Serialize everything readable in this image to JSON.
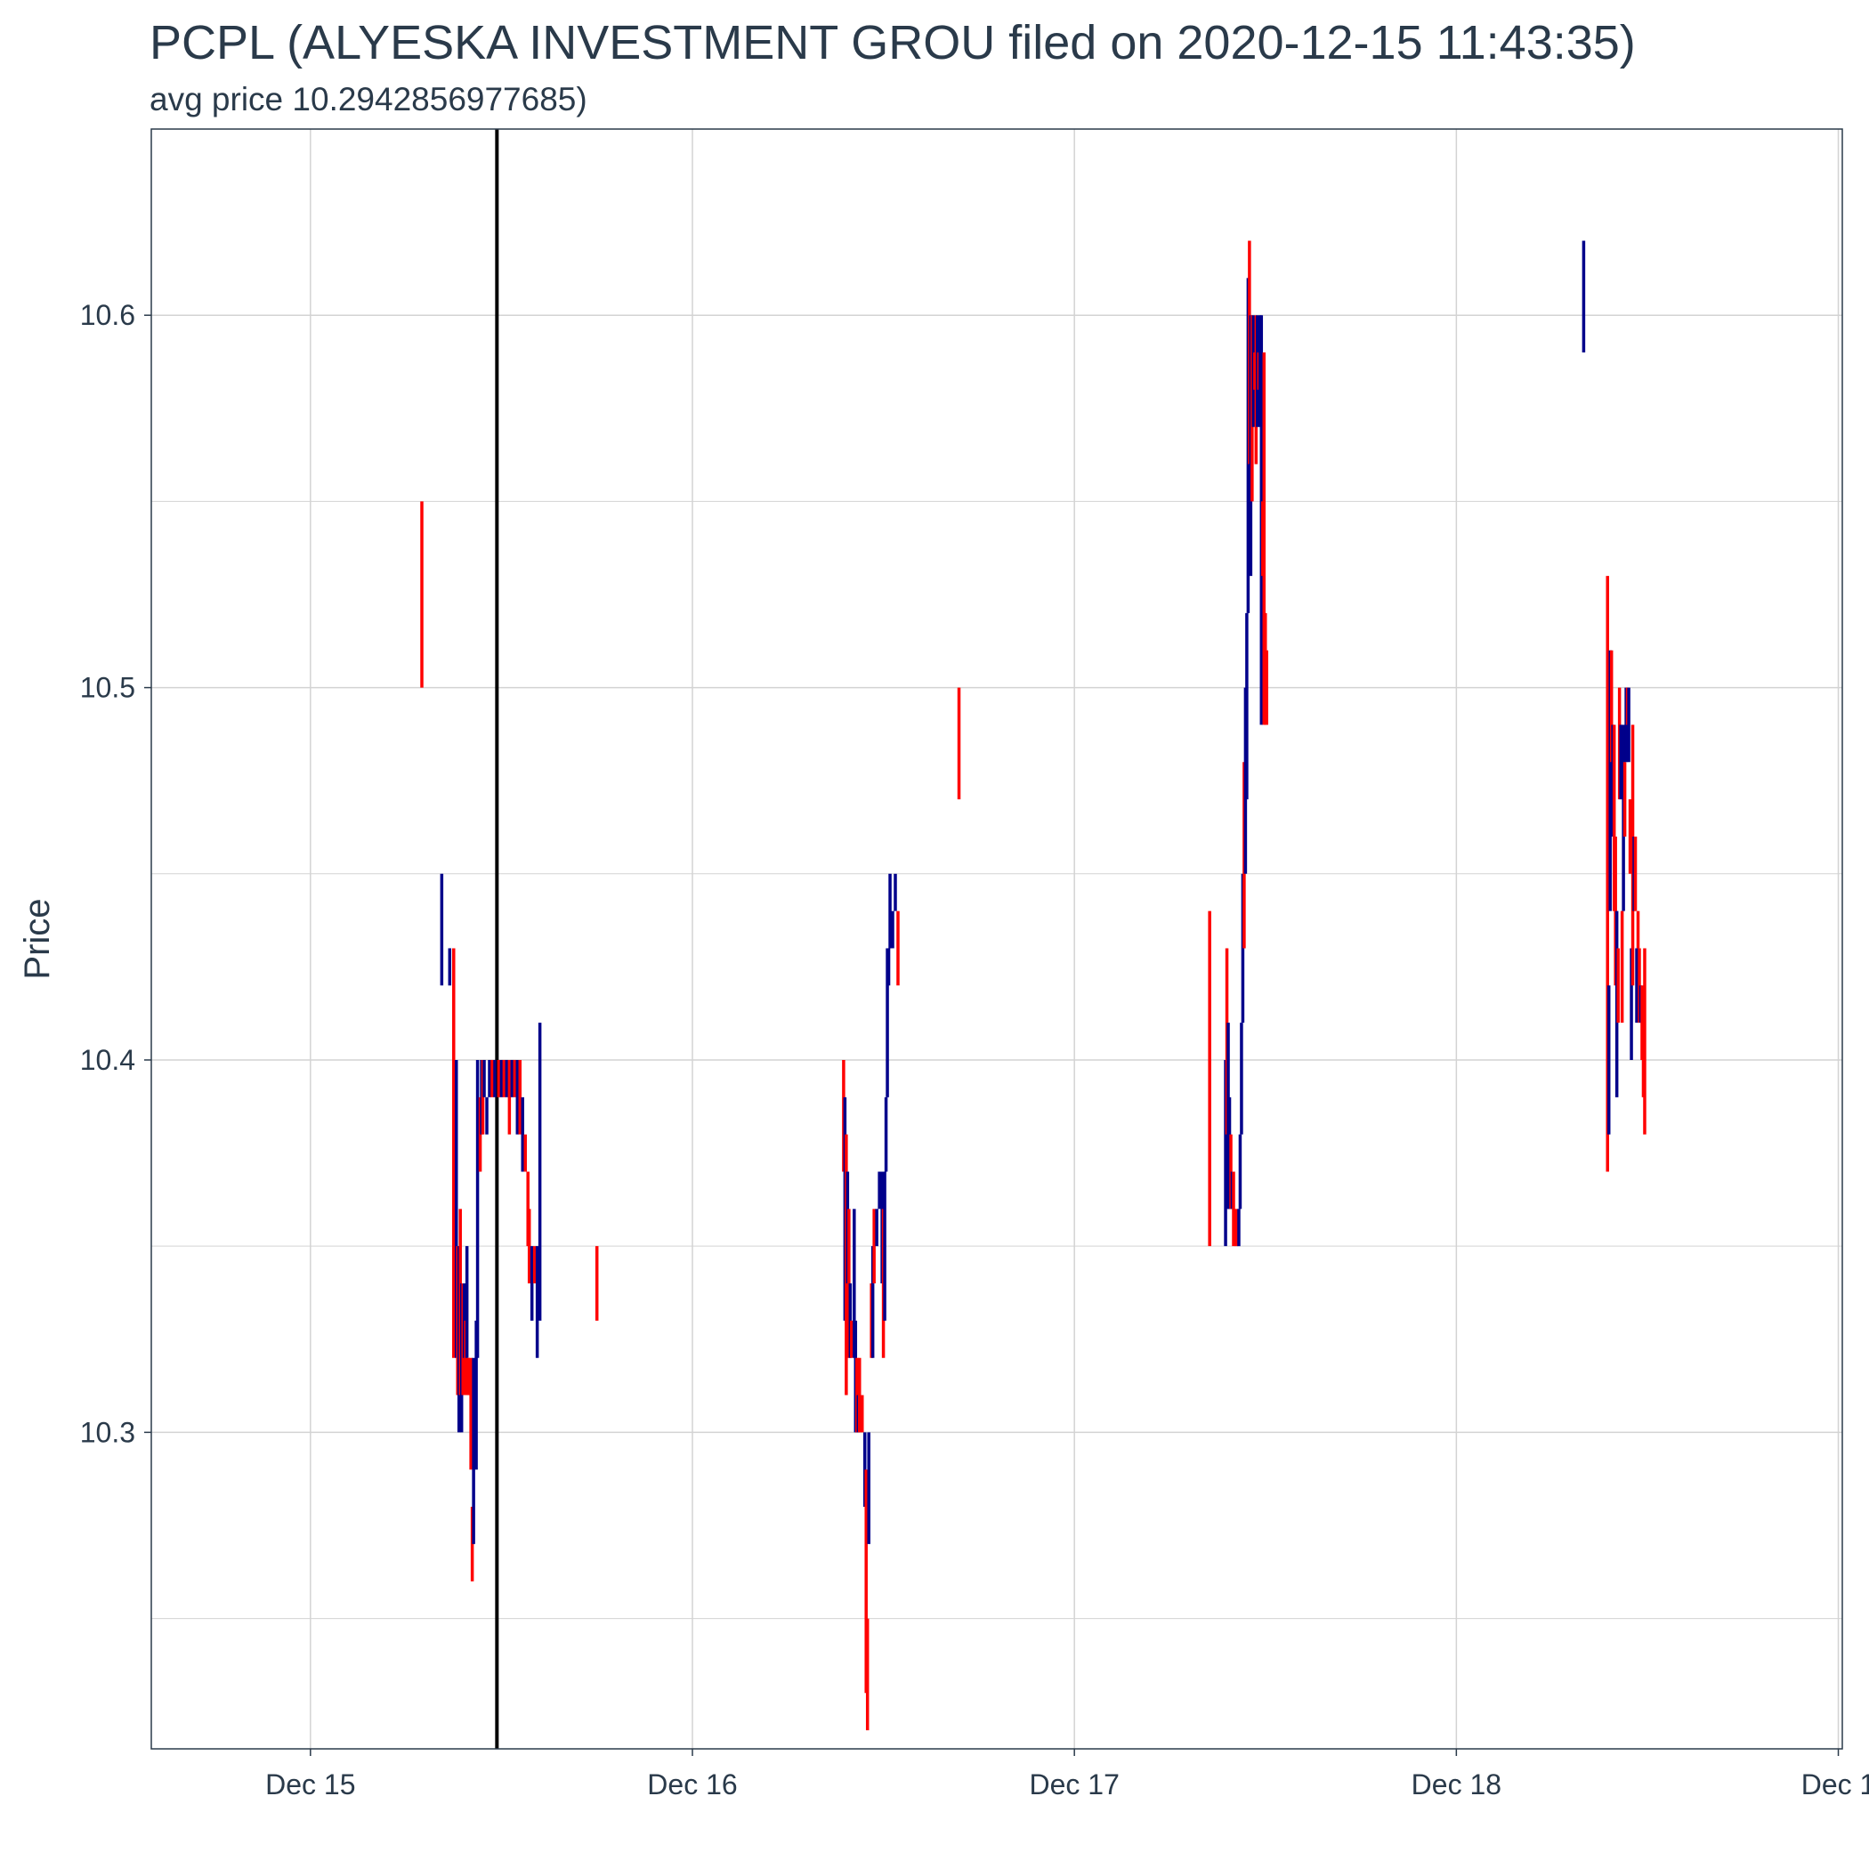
{
  "chart_data": {
    "type": "candlestick",
    "title": "PCPL (ALYESKA INVESTMENT GROU filed on 2020-12-15 11:43:35)",
    "subtitle": "avg price 10.2942856977685)",
    "ylabel": "Price",
    "xlabel": "",
    "ylim": [
      10.215,
      10.65
    ],
    "xlim": [
      "2020-12-14 14:00",
      "2020-12-19 00:15"
    ],
    "y_ticks": [
      10.3,
      10.4,
      10.5,
      10.6
    ],
    "y_tick_labels": [
      "10.3",
      "10.4",
      "10.5",
      "10.6"
    ],
    "x_ticks": [
      "2020-12-15 00:00",
      "2020-12-16 00:00",
      "2020-12-17 00:00",
      "2020-12-18 00:00",
      "2020-12-19 00:00"
    ],
    "x_tick_labels": [
      "Dec 15",
      "Dec 16",
      "Dec 17",
      "Dec 18",
      "Dec 1"
    ],
    "filing_time": "2020-12-15 11:43",
    "grid": true,
    "legend": "none",
    "colors": {
      "up": "#00008b",
      "down": "#ff0000",
      "filing_line": "#000000",
      "grid": "#d3d3d3",
      "frame": "#2a3a4a"
    },
    "bars": [
      {
        "t": "2020-12-15 07:00",
        "low": 10.5,
        "high": 10.55,
        "dir": "down"
      },
      {
        "t": "2020-12-15 08:15",
        "low": 10.42,
        "high": 10.45,
        "dir": "up"
      },
      {
        "t": "2020-12-15 08:45",
        "low": 10.42,
        "high": 10.43,
        "dir": "up"
      },
      {
        "t": "2020-12-15 09:00",
        "low": 10.32,
        "high": 10.43,
        "dir": "down"
      },
      {
        "t": "2020-12-15 09:05",
        "low": 10.33,
        "high": 10.39,
        "dir": "down"
      },
      {
        "t": "2020-12-15 09:10",
        "low": 10.32,
        "high": 10.4,
        "dir": "up"
      },
      {
        "t": "2020-12-15 09:15",
        "low": 10.31,
        "high": 10.35,
        "dir": "down"
      },
      {
        "t": "2020-12-15 09:20",
        "low": 10.3,
        "high": 10.35,
        "dir": "up"
      },
      {
        "t": "2020-12-15 09:25",
        "low": 10.31,
        "high": 10.36,
        "dir": "down"
      },
      {
        "t": "2020-12-15 09:30",
        "low": 10.3,
        "high": 10.34,
        "dir": "up"
      },
      {
        "t": "2020-12-15 09:35",
        "low": 10.31,
        "high": 10.34,
        "dir": "down"
      },
      {
        "t": "2020-12-15 09:40",
        "low": 10.32,
        "high": 10.34,
        "dir": "up"
      },
      {
        "t": "2020-12-15 09:45",
        "low": 10.31,
        "high": 10.33,
        "dir": "down"
      },
      {
        "t": "2020-12-15 09:50",
        "low": 10.32,
        "high": 10.35,
        "dir": "up"
      },
      {
        "t": "2020-12-15 09:55",
        "low": 10.31,
        "high": 10.32,
        "dir": "down"
      },
      {
        "t": "2020-12-15 10:05",
        "low": 10.29,
        "high": 10.32,
        "dir": "down"
      },
      {
        "t": "2020-12-15 10:10",
        "low": 10.26,
        "high": 10.28,
        "dir": "down"
      },
      {
        "t": "2020-12-15 10:15",
        "low": 10.27,
        "high": 10.32,
        "dir": "up"
      },
      {
        "t": "2020-12-15 10:25",
        "low": 10.29,
        "high": 10.33,
        "dir": "up"
      },
      {
        "t": "2020-12-15 10:30",
        "low": 10.32,
        "high": 10.4,
        "dir": "up"
      },
      {
        "t": "2020-12-15 10:40",
        "low": 10.37,
        "high": 10.39,
        "dir": "down"
      },
      {
        "t": "2020-12-15 10:45",
        "low": 10.38,
        "high": 10.4,
        "dir": "up"
      },
      {
        "t": "2020-12-15 10:50",
        "low": 10.38,
        "high": 10.4,
        "dir": "down"
      },
      {
        "t": "2020-12-15 10:55",
        "low": 10.39,
        "high": 10.4,
        "dir": "up"
      },
      {
        "t": "2020-12-15 11:05",
        "low": 10.38,
        "high": 10.39,
        "dir": "up"
      },
      {
        "t": "2020-12-15 11:15",
        "low": 10.39,
        "high": 10.4,
        "dir": "up"
      },
      {
        "t": "2020-12-15 11:25",
        "low": 10.39,
        "high": 10.4,
        "dir": "down"
      },
      {
        "t": "2020-12-15 11:35",
        "low": 10.39,
        "high": 10.4,
        "dir": "up"
      },
      {
        "t": "2020-12-15 11:50",
        "low": 10.39,
        "high": 10.4,
        "dir": "down"
      },
      {
        "t": "2020-12-15 12:00",
        "low": 10.39,
        "high": 10.4,
        "dir": "up"
      },
      {
        "t": "2020-12-15 12:10",
        "low": 10.39,
        "high": 10.4,
        "dir": "down"
      },
      {
        "t": "2020-12-15 12:20",
        "low": 10.39,
        "high": 10.4,
        "dir": "up"
      },
      {
        "t": "2020-12-15 12:30",
        "low": 10.38,
        "high": 10.4,
        "dir": "down"
      },
      {
        "t": "2020-12-15 12:40",
        "low": 10.39,
        "high": 10.4,
        "dir": "up"
      },
      {
        "t": "2020-12-15 12:50",
        "low": 10.39,
        "high": 10.4,
        "dir": "down"
      },
      {
        "t": "2020-12-15 13:00",
        "low": 10.38,
        "high": 10.4,
        "dir": "up"
      },
      {
        "t": "2020-12-15 13:10",
        "low": 10.38,
        "high": 10.4,
        "dir": "down"
      },
      {
        "t": "2020-12-15 13:20",
        "low": 10.37,
        "high": 10.39,
        "dir": "up"
      },
      {
        "t": "2020-12-15 13:30",
        "low": 10.37,
        "high": 10.38,
        "dir": "down"
      },
      {
        "t": "2020-12-15 13:40",
        "low": 10.35,
        "high": 10.37,
        "dir": "down"
      },
      {
        "t": "2020-12-15 13:45",
        "low": 10.34,
        "high": 10.36,
        "dir": "down"
      },
      {
        "t": "2020-12-15 13:55",
        "low": 10.33,
        "high": 10.35,
        "dir": "up"
      },
      {
        "t": "2020-12-15 14:05",
        "low": 10.34,
        "high": 10.35,
        "dir": "down"
      },
      {
        "t": "2020-12-15 14:15",
        "low": 10.32,
        "high": 10.35,
        "dir": "up"
      },
      {
        "t": "2020-12-15 14:25",
        "low": 10.33,
        "high": 10.41,
        "dir": "up"
      },
      {
        "t": "2020-12-15 18:00",
        "low": 10.33,
        "high": 10.35,
        "dir": "down"
      },
      {
        "t": "2020-12-16 09:00",
        "low": 10.31,
        "high": 10.31,
        "dir": "down"
      },
      {
        "t": "2020-12-16 09:30",
        "low": 10.37,
        "high": 10.4,
        "dir": "down"
      },
      {
        "t": "2020-12-16 09:35",
        "low": 10.33,
        "high": 10.39,
        "dir": "up"
      },
      {
        "t": "2020-12-16 09:40",
        "low": 10.31,
        "high": 10.38,
        "dir": "down"
      },
      {
        "t": "2020-12-16 09:45",
        "low": 10.34,
        "high": 10.37,
        "dir": "up"
      },
      {
        "t": "2020-12-16 09:50",
        "low": 10.32,
        "high": 10.36,
        "dir": "down"
      },
      {
        "t": "2020-12-16 09:55",
        "low": 10.32,
        "high": 10.34,
        "dir": "up"
      },
      {
        "t": "2020-12-16 10:00",
        "low": 10.32,
        "high": 10.33,
        "dir": "down"
      },
      {
        "t": "2020-12-16 10:10",
        "low": 10.32,
        "high": 10.36,
        "dir": "up"
      },
      {
        "t": "2020-12-16 10:15",
        "low": 10.3,
        "high": 10.33,
        "dir": "up"
      },
      {
        "t": "2020-12-16 10:20",
        "low": 10.3,
        "high": 10.32,
        "dir": "down"
      },
      {
        "t": "2020-12-16 10:25",
        "low": 10.3,
        "high": 10.31,
        "dir": "up"
      },
      {
        "t": "2020-12-16 10:30",
        "low": 10.3,
        "high": 10.32,
        "dir": "down"
      },
      {
        "t": "2020-12-16 10:40",
        "low": 10.3,
        "high": 10.31,
        "dir": "down"
      },
      {
        "t": "2020-12-16 10:50",
        "low": 10.28,
        "high": 10.3,
        "dir": "up"
      },
      {
        "t": "2020-12-16 10:55",
        "low": 10.23,
        "high": 10.29,
        "dir": "down"
      },
      {
        "t": "2020-12-16 11:00",
        "low": 10.22,
        "high": 10.25,
        "dir": "down"
      },
      {
        "t": "2020-12-16 11:05",
        "low": 10.27,
        "high": 10.3,
        "dir": "up"
      },
      {
        "t": "2020-12-16 11:15",
        "low": 10.32,
        "high": 10.34,
        "dir": "down"
      },
      {
        "t": "2020-12-16 11:20",
        "low": 10.32,
        "high": 10.35,
        "dir": "up"
      },
      {
        "t": "2020-12-16 11:25",
        "low": 10.34,
        "high": 10.36,
        "dir": "down"
      },
      {
        "t": "2020-12-16 11:35",
        "low": 10.35,
        "high": 10.36,
        "dir": "up"
      },
      {
        "t": "2020-12-16 11:45",
        "low": 10.36,
        "high": 10.37,
        "dir": "up"
      },
      {
        "t": "2020-12-16 11:55",
        "low": 10.34,
        "high": 10.37,
        "dir": "up"
      },
      {
        "t": "2020-12-16 12:00",
        "low": 10.32,
        "high": 10.36,
        "dir": "down"
      },
      {
        "t": "2020-12-16 12:05",
        "low": 10.33,
        "high": 10.37,
        "dir": "up"
      },
      {
        "t": "2020-12-16 12:10",
        "low": 10.37,
        "high": 10.39,
        "dir": "up"
      },
      {
        "t": "2020-12-16 12:15",
        "low": 10.39,
        "high": 10.43,
        "dir": "up"
      },
      {
        "t": "2020-12-16 12:20",
        "low": 10.42,
        "high": 10.43,
        "dir": "up"
      },
      {
        "t": "2020-12-16 12:25",
        "low": 10.43,
        "high": 10.45,
        "dir": "up"
      },
      {
        "t": "2020-12-16 12:35",
        "low": 10.43,
        "high": 10.44,
        "dir": "up"
      },
      {
        "t": "2020-12-16 12:45",
        "low": 10.44,
        "high": 10.45,
        "dir": "up"
      },
      {
        "t": "2020-12-16 12:55",
        "low": 10.42,
        "high": 10.44,
        "dir": "down"
      },
      {
        "t": "2020-12-16 16:45",
        "low": 10.47,
        "high": 10.5,
        "dir": "down"
      },
      {
        "t": "2020-12-17 08:30",
        "low": 10.35,
        "high": 10.44,
        "dir": "down"
      },
      {
        "t": "2020-12-17 09:30",
        "low": 10.35,
        "high": 10.4,
        "dir": "up"
      },
      {
        "t": "2020-12-17 09:35",
        "low": 10.38,
        "high": 10.43,
        "dir": "down"
      },
      {
        "t": "2020-12-17 09:40",
        "low": 10.36,
        "high": 10.41,
        "dir": "up"
      },
      {
        "t": "2020-12-17 09:45",
        "low": 10.36,
        "high": 10.39,
        "dir": "up"
      },
      {
        "t": "2020-12-17 09:50",
        "low": 10.36,
        "high": 10.38,
        "dir": "down"
      },
      {
        "t": "2020-12-17 09:55",
        "low": 10.36,
        "high": 10.37,
        "dir": "up"
      },
      {
        "t": "2020-12-17 10:00",
        "low": 10.35,
        "high": 10.37,
        "dir": "down"
      },
      {
        "t": "2020-12-17 10:10",
        "low": 10.35,
        "high": 10.36,
        "dir": "down"
      },
      {
        "t": "2020-12-17 10:20",
        "low": 10.35,
        "high": 10.36,
        "dir": "up"
      },
      {
        "t": "2020-12-17 10:25",
        "low": 10.36,
        "high": 10.38,
        "dir": "up"
      },
      {
        "t": "2020-12-17 10:30",
        "low": 10.38,
        "high": 10.41,
        "dir": "up"
      },
      {
        "t": "2020-12-17 10:35",
        "low": 10.41,
        "high": 10.45,
        "dir": "up"
      },
      {
        "t": "2020-12-17 10:40",
        "low": 10.43,
        "high": 10.48,
        "dir": "down"
      },
      {
        "t": "2020-12-17 10:45",
        "low": 10.45,
        "high": 10.5,
        "dir": "up"
      },
      {
        "t": "2020-12-17 10:50",
        "low": 10.47,
        "high": 10.52,
        "dir": "up"
      },
      {
        "t": "2020-12-17 10:55",
        "low": 10.52,
        "high": 10.61,
        "dir": "up"
      },
      {
        "t": "2020-12-17 11:00",
        "low": 10.56,
        "high": 10.62,
        "dir": "down"
      },
      {
        "t": "2020-12-17 11:05",
        "low": 10.53,
        "high": 10.6,
        "dir": "up"
      },
      {
        "t": "2020-12-17 11:10",
        "low": 10.55,
        "high": 10.6,
        "dir": "down"
      },
      {
        "t": "2020-12-17 11:15",
        "low": 10.57,
        "high": 10.6,
        "dir": "up"
      },
      {
        "t": "2020-12-17 11:20",
        "low": 10.58,
        "high": 10.59,
        "dir": "down"
      },
      {
        "t": "2020-12-17 11:25",
        "low": 10.56,
        "high": 10.6,
        "dir": "down"
      },
      {
        "t": "2020-12-17 11:30",
        "low": 10.57,
        "high": 10.6,
        "dir": "up"
      },
      {
        "t": "2020-12-17 11:35",
        "low": 10.58,
        "high": 10.59,
        "dir": "down"
      },
      {
        "t": "2020-12-17 11:40",
        "low": 10.57,
        "high": 10.6,
        "dir": "up"
      },
      {
        "t": "2020-12-17 11:45",
        "low": 10.49,
        "high": 10.6,
        "dir": "up"
      },
      {
        "t": "2020-12-17 11:50",
        "low": 10.53,
        "high": 10.55,
        "dir": "down"
      },
      {
        "t": "2020-12-17 11:55",
        "low": 10.49,
        "high": 10.59,
        "dir": "down"
      },
      {
        "t": "2020-12-17 12:00",
        "low": 10.49,
        "high": 10.52,
        "dir": "down"
      },
      {
        "t": "2020-12-17 12:05",
        "low": 10.49,
        "high": 10.51,
        "dir": "down"
      },
      {
        "t": "2020-12-18 08:00",
        "low": 10.59,
        "high": 10.62,
        "dir": "up"
      },
      {
        "t": "2020-12-18 09:30",
        "low": 10.37,
        "high": 10.53,
        "dir": "down"
      },
      {
        "t": "2020-12-18 09:35",
        "low": 10.38,
        "high": 10.42,
        "dir": "up"
      },
      {
        "t": "2020-12-18 09:40",
        "low": 10.44,
        "high": 10.51,
        "dir": "up"
      },
      {
        "t": "2020-12-18 09:45",
        "low": 10.48,
        "high": 10.51,
        "dir": "down"
      },
      {
        "t": "2020-12-18 09:50",
        "low": 10.46,
        "high": 10.49,
        "dir": "up"
      },
      {
        "t": "2020-12-18 09:55",
        "low": 10.44,
        "high": 10.49,
        "dir": "down"
      },
      {
        "t": "2020-12-18 10:00",
        "low": 10.42,
        "high": 10.46,
        "dir": "down"
      },
      {
        "t": "2020-12-18 10:05",
        "low": 10.39,
        "high": 10.44,
        "dir": "up"
      },
      {
        "t": "2020-12-18 10:10",
        "low": 10.41,
        "high": 10.43,
        "dir": "down"
      },
      {
        "t": "2020-12-18 10:15",
        "low": 10.47,
        "high": 10.5,
        "dir": "down"
      },
      {
        "t": "2020-12-18 10:20",
        "low": 10.47,
        "high": 10.49,
        "dir": "up"
      },
      {
        "t": "2020-12-18 10:25",
        "low": 10.41,
        "high": 10.44,
        "dir": "down"
      },
      {
        "t": "2020-12-18 10:30",
        "low": 10.44,
        "high": 10.49,
        "dir": "up"
      },
      {
        "t": "2020-12-18 10:35",
        "low": 10.46,
        "high": 10.48,
        "dir": "down"
      },
      {
        "t": "2020-12-18 10:40",
        "low": 10.48,
        "high": 10.5,
        "dir": "up"
      },
      {
        "t": "2020-12-18 10:45",
        "low": 10.49,
        "high": 10.5,
        "dir": "down"
      },
      {
        "t": "2020-12-18 10:50",
        "low": 10.48,
        "high": 10.5,
        "dir": "up"
      },
      {
        "t": "2020-12-18 10:55",
        "low": 10.45,
        "high": 10.47,
        "dir": "down"
      },
      {
        "t": "2020-12-18 11:00",
        "low": 10.4,
        "high": 10.43,
        "dir": "up"
      },
      {
        "t": "2020-12-18 11:05",
        "low": 10.42,
        "high": 10.49,
        "dir": "down"
      },
      {
        "t": "2020-12-18 11:10",
        "low": 10.44,
        "high": 10.46,
        "dir": "up"
      },
      {
        "t": "2020-12-18 11:15",
        "low": 10.44,
        "high": 10.46,
        "dir": "down"
      },
      {
        "t": "2020-12-18 11:20",
        "low": 10.41,
        "high": 10.43,
        "dir": "up"
      },
      {
        "t": "2020-12-18 11:25",
        "low": 10.43,
        "high": 10.44,
        "dir": "down"
      },
      {
        "t": "2020-12-18 11:30",
        "low": 10.41,
        "high": 10.43,
        "dir": "down"
      },
      {
        "t": "2020-12-18 11:35",
        "low": 10.41,
        "high": 10.42,
        "dir": "up"
      },
      {
        "t": "2020-12-18 11:40",
        "low": 10.4,
        "high": 10.42,
        "dir": "down"
      },
      {
        "t": "2020-12-18 11:45",
        "low": 10.39,
        "high": 10.4,
        "dir": "down"
      },
      {
        "t": "2020-12-18 11:50",
        "low": 10.38,
        "high": 10.43,
        "dir": "down"
      }
    ]
  }
}
